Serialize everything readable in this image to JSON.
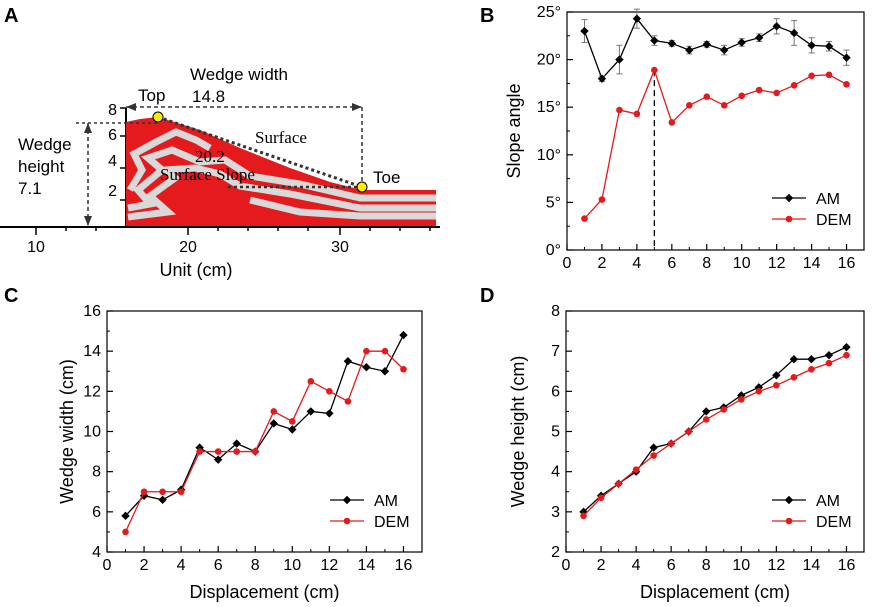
{
  "colors": {
    "am": "#000000",
    "dem": "#e41a1c",
    "wedge_red": "#e41a1c",
    "wedge_gray": "#d9d9d9",
    "marker_yellow": "#ffeb00"
  },
  "panel_a": {
    "letter": "A",
    "xlabel": "Unit (cm)",
    "x_ticks": [
      "10",
      "20",
      "30"
    ],
    "y_ticks": [
      "2",
      "4",
      "6",
      "8"
    ],
    "top_label": "Top",
    "toe_label": "Toe",
    "width_label": "Wedge width",
    "width_value": "14.8",
    "height_label_1": "Wedge",
    "height_label_2": "height",
    "height_value": "7.1",
    "surface_label": "Surface",
    "slope_value": "20.2",
    "slope_label": "Surface Slope"
  },
  "chart_data": [
    {
      "panel": "B",
      "type": "line",
      "xlabel": "",
      "ylabel": "Slope angle",
      "xlim": [
        0,
        17
      ],
      "ylim": [
        0,
        25
      ],
      "x_ticks": [
        0,
        2,
        4,
        6,
        8,
        10,
        12,
        14,
        16
      ],
      "y_ticks": [
        0,
        5,
        10,
        15,
        20,
        25
      ],
      "y_tick_labels": [
        "0°",
        "5°",
        "10°",
        "15°",
        "20°",
        "25°"
      ],
      "x": [
        1,
        2,
        3,
        4,
        5,
        6,
        7,
        8,
        9,
        10,
        11,
        12,
        13,
        14,
        15,
        16
      ],
      "series": [
        {
          "name": "AM",
          "marker": "diamond",
          "values": [
            23.0,
            18.0,
            20.0,
            24.3,
            22.0,
            21.7,
            21.0,
            21.6,
            21.0,
            21.8,
            22.3,
            23.5,
            22.8,
            21.5,
            21.4,
            20.2
          ],
          "errors": [
            1.2,
            0.3,
            1.5,
            1.0,
            0.5,
            0.3,
            0.4,
            0.3,
            0.5,
            0.4,
            0.4,
            0.8,
            1.3,
            0.8,
            0.5,
            0.8
          ]
        },
        {
          "name": "DEM",
          "marker": "circle",
          "values": [
            3.3,
            5.3,
            14.7,
            14.3,
            18.9,
            13.4,
            15.2,
            16.1,
            15.2,
            16.2,
            16.8,
            16.5,
            17.3,
            18.3,
            18.4,
            17.4
          ]
        }
      ],
      "vline_x": 5,
      "legend": "bottom-right"
    },
    {
      "panel": "C",
      "type": "line",
      "xlabel": "Displacement (cm)",
      "ylabel": "Wedge width (cm)",
      "xlim": [
        0,
        17
      ],
      "ylim": [
        4,
        16
      ],
      "x_ticks": [
        0,
        2,
        4,
        6,
        8,
        10,
        12,
        14,
        16
      ],
      "y_ticks": [
        4,
        6,
        8,
        10,
        12,
        14,
        16
      ],
      "x": [
        1,
        2,
        3,
        4,
        5,
        6,
        7,
        8,
        9,
        10,
        11,
        12,
        13,
        14,
        15,
        16
      ],
      "series": [
        {
          "name": "AM",
          "marker": "diamond",
          "values": [
            5.8,
            6.8,
            6.6,
            7.1,
            9.2,
            8.6,
            9.4,
            9.0,
            10.4,
            10.1,
            11.0,
            10.9,
            13.5,
            13.2,
            13.0,
            14.8
          ]
        },
        {
          "name": "DEM",
          "marker": "circle",
          "values": [
            5.0,
            7.0,
            7.0,
            7.0,
            9.0,
            9.0,
            9.0,
            9.0,
            11.0,
            10.5,
            12.5,
            12.0,
            11.5,
            14.0,
            14.0,
            13.1
          ]
        }
      ],
      "legend": "bottom-right"
    },
    {
      "panel": "D",
      "type": "line",
      "xlabel": "Displacement (cm)",
      "ylabel": "Wedge height (cm)",
      "xlim": [
        0,
        17
      ],
      "ylim": [
        2,
        8
      ],
      "x_ticks": [
        0,
        2,
        4,
        6,
        8,
        10,
        12,
        14,
        16
      ],
      "y_ticks": [
        2,
        3,
        4,
        5,
        6,
        7,
        8
      ],
      "x": [
        1,
        2,
        3,
        4,
        5,
        6,
        7,
        8,
        9,
        10,
        11,
        12,
        13,
        14,
        15,
        16
      ],
      "series": [
        {
          "name": "AM",
          "marker": "diamond",
          "values": [
            3.0,
            3.4,
            3.7,
            4.0,
            4.6,
            4.7,
            5.0,
            5.5,
            5.6,
            5.9,
            6.1,
            6.4,
            6.8,
            6.8,
            6.9,
            7.1
          ]
        },
        {
          "name": "DEM",
          "marker": "circle",
          "values": [
            2.9,
            3.35,
            3.7,
            4.05,
            4.4,
            4.7,
            5.0,
            5.3,
            5.55,
            5.8,
            6.0,
            6.15,
            6.35,
            6.55,
            6.7,
            6.9
          ]
        }
      ],
      "legend": "bottom-right"
    }
  ]
}
